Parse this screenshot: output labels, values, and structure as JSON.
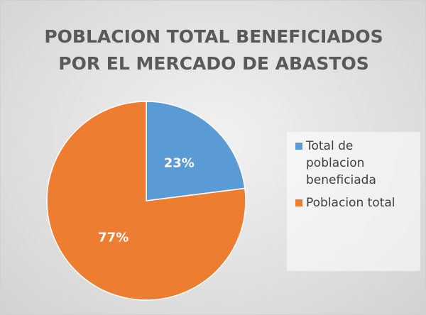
{
  "chart_data": {
    "type": "pie",
    "title": "POBLACION TOTAL BENEFICIADOS POR EL MERCADO DE ABASTOS",
    "categories": [
      "Total de poblacion beneficiada",
      "Poblacion total"
    ],
    "values": [
      23,
      77
    ],
    "value_labels": [
      "23%",
      "77%"
    ],
    "colors": [
      "#5b9bd5",
      "#ed7d31"
    ],
    "legend": "right"
  }
}
